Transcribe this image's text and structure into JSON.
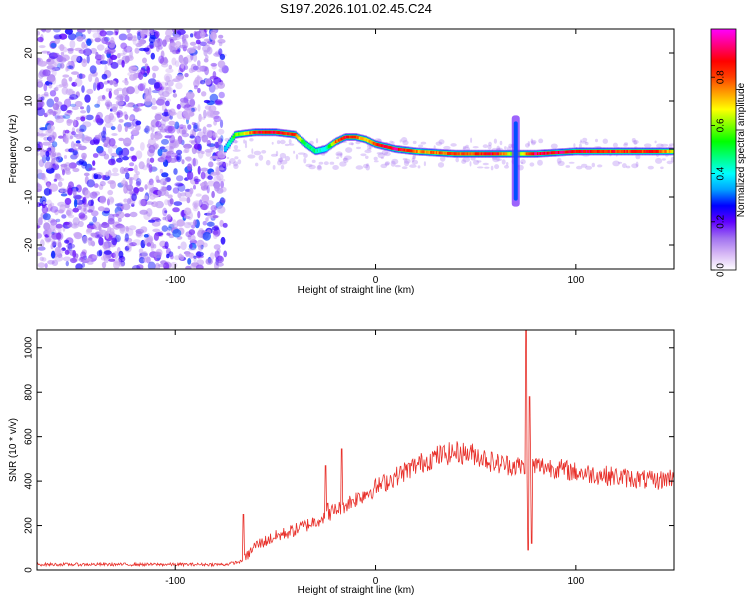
{
  "title": "S197.2026.101.02.45.C24",
  "chart_data": [
    {
      "type": "heatmap",
      "name": "spectrogram",
      "xlabel": "Height of straight line (km)",
      "ylabel": "Frequency (Hz)",
      "xlim": [
        -169,
        149
      ],
      "ylim": [
        -25,
        25
      ],
      "xticks": [
        -100,
        0,
        100
      ],
      "xtick_labels": [
        "-100",
        "0",
        "100"
      ],
      "yticks": [
        -20,
        -10,
        0,
        10,
        20
      ],
      "ytick_labels": [
        "-20",
        "-10",
        "0",
        "10",
        "20"
      ],
      "noise_region_x": [
        -169,
        -75
      ],
      "signal_track": {
        "x": [
          -75,
          -70,
          -60,
          -50,
          -40,
          -35,
          -30,
          -25,
          -20,
          -15,
          -10,
          -5,
          0,
          10,
          20,
          40,
          60,
          70,
          80,
          100,
          120,
          140,
          149
        ],
        "y": [
          0,
          3,
          3.5,
          3.5,
          3,
          1,
          -0.5,
          0,
          1.5,
          2.5,
          2.5,
          2,
          1,
          0,
          -0.5,
          -1,
          -1,
          -1,
          -1,
          -0.5,
          -0.5,
          -0.5,
          -0.5
        ],
        "amplitude": [
          0.4,
          0.6,
          0.9,
          0.95,
          0.9,
          0.5,
          0.5,
          0.4,
          0.8,
          0.95,
          0.9,
          0.7,
          0.9,
          1.0,
          0.8,
          0.85,
          0.95,
          0.6,
          1.0,
          0.95,
          0.9,
          0.9,
          0.7
        ]
      },
      "spike_x": 70,
      "spike_range": [
        -12,
        7
      ]
    },
    {
      "type": "colorbar",
      "name": "amplitude-scale",
      "label": "Normalized spectral amplitude",
      "range": [
        0,
        1
      ],
      "ticks": [
        0.0,
        0.2,
        0.4,
        0.6,
        0.8
      ],
      "tick_labels": [
        "0.0",
        "0.2",
        "0.4",
        "0.6",
        "0.8"
      ],
      "colors": [
        "#ffffff",
        "#d7b8f5",
        "#a070f0",
        "#6000ff",
        "#0000ff",
        "#00a0ff",
        "#00ffff",
        "#00ff80",
        "#00ff00",
        "#80ff00",
        "#ffff00",
        "#ffa000",
        "#ff4000",
        "#ff0000",
        "#ff0080",
        "#ff00ff"
      ]
    },
    {
      "type": "line",
      "name": "snr",
      "xlabel": "Height of straight line (km)",
      "ylabel": "SNR (10 * v/v)",
      "xlim": [
        -169,
        149
      ],
      "ylim": [
        0,
        1080
      ],
      "xticks": [
        -100,
        0,
        100
      ],
      "xtick_labels": [
        "-100",
        "0",
        "100"
      ],
      "yticks": [
        0,
        200,
        400,
        600,
        800,
        1000
      ],
      "ytick_labels": [
        "0",
        "200",
        "400",
        "600",
        "800",
        "1000"
      ],
      "color": "#e8302a",
      "trend": {
        "x": [
          -169,
          -75,
          -66,
          -60,
          -50,
          -40,
          -30,
          -20,
          -10,
          0,
          10,
          20,
          30,
          40,
          50,
          60,
          70,
          75,
          80,
          90,
          100,
          110,
          120,
          130,
          140,
          149
        ],
        "y": [
          25,
          25,
          40,
          110,
          150,
          180,
          220,
          270,
          320,
          370,
          420,
          470,
          510,
          530,
          520,
          480,
          470,
          460,
          470,
          460,
          440,
          430,
          420,
          410,
          400,
          420
        ]
      },
      "spikes": [
        {
          "x": -66,
          "y": 250
        },
        {
          "x": -25,
          "y": 470
        },
        {
          "x": -24,
          "y": 300
        },
        {
          "x": -17,
          "y": 545
        },
        {
          "x": 75,
          "y": 1080
        },
        {
          "x": 76,
          "y": 90
        },
        {
          "x": 77,
          "y": 780
        },
        {
          "x": 78,
          "y": 120
        }
      ]
    }
  ]
}
